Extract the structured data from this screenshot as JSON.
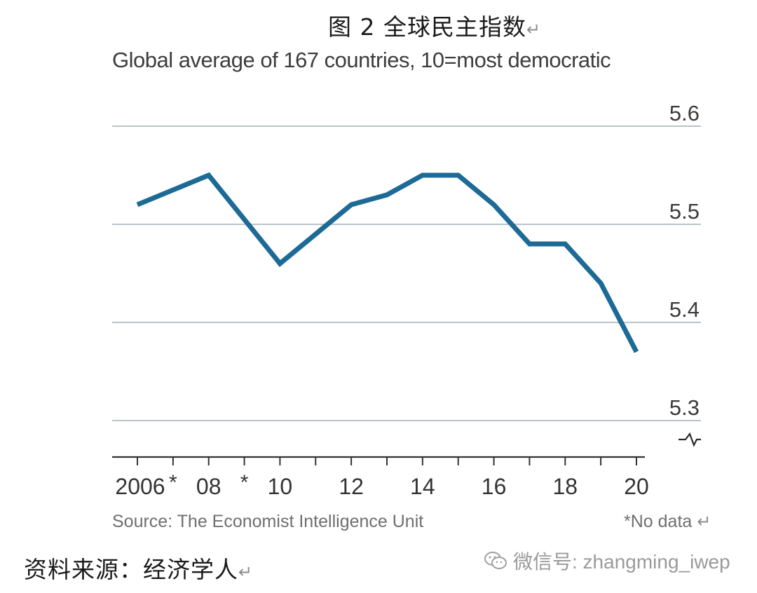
{
  "figure_title": "图 2  全球民主指数",
  "return_mark": "↵",
  "chart_data": {
    "type": "line",
    "title": "图 2  全球民主指数",
    "subtitle": "Global average of 167 countries, 10=most democratic",
    "x": [
      2006,
      2007,
      2008,
      2009,
      2010,
      2011,
      2012,
      2013,
      2014,
      2015,
      2016,
      2017,
      2018,
      2019,
      2020
    ],
    "y": [
      5.52,
      null,
      5.55,
      null,
      5.46,
      null,
      5.52,
      5.53,
      5.55,
      5.55,
      5.52,
      5.48,
      5.48,
      5.44,
      5.37
    ],
    "series_name": "Global average",
    "series_color": "#1d6a96",
    "x_tick_labels": [
      "2006",
      "*",
      "08",
      "*",
      "10",
      "12",
      "14",
      "16",
      "18",
      "20"
    ],
    "x_tick_label_years": [
      2006,
      2007,
      2008,
      2009,
      2010,
      2012,
      2014,
      2016,
      2018,
      2020
    ],
    "y_ticks": [
      "5.6",
      "5.5",
      "5.4",
      "5.3"
    ],
    "y_tick_values": [
      5.6,
      5.5,
      5.4,
      5.3
    ],
    "ylim": [
      5.25,
      5.6
    ],
    "xlim": [
      2006,
      2020
    ],
    "grid": true,
    "axis_break": true,
    "xlabel": "",
    "ylabel": "",
    "source": "Source: The Economist Intelligence Unit",
    "note": "*No data",
    "grid_color": "#b9c3ca"
  },
  "footer": {
    "cn_source": "资料来源：经济学人",
    "watermark": "微信号: zhangming_iwep"
  }
}
